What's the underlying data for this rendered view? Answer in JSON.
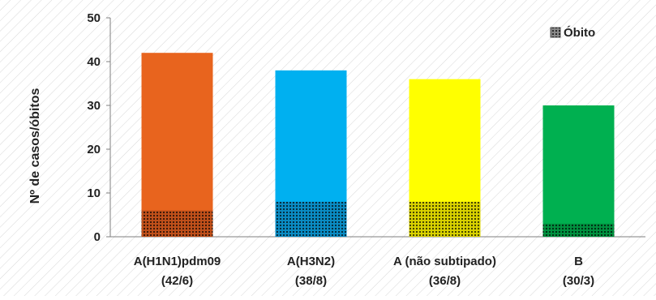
{
  "chart_data": {
    "type": "bar",
    "ylabel": "Nº de casos/óbitos",
    "ylim": [
      0,
      50
    ],
    "yticks": [
      0,
      10,
      20,
      30,
      40,
      50
    ],
    "grid": false,
    "background": "diagonal hatch",
    "legend": {
      "placement": "top-right",
      "label": "Óbito",
      "pattern": "dotted"
    },
    "categories": [
      {
        "name": "A(H1N1)pdm09",
        "sub": "(42/6)"
      },
      {
        "name": "A(H3N2)",
        "sub": "(38/8)"
      },
      {
        "name": "A (não subtipado)",
        "sub": "(36/8)"
      },
      {
        "name": "B",
        "sub": "(30/3)"
      }
    ],
    "series": [
      {
        "key": "casos",
        "values": [
          42,
          38,
          36,
          30
        ]
      },
      {
        "name": "Óbito",
        "key": "obitos",
        "values": [
          6,
          8,
          8,
          3
        ]
      }
    ],
    "colors": [
      "#e8641e",
      "#00b0f0",
      "#ffff00",
      "#00b050"
    ],
    "death_colors": [
      "#c0501a",
      "#0a8cc4",
      "#d9d200",
      "#00913f"
    ]
  }
}
